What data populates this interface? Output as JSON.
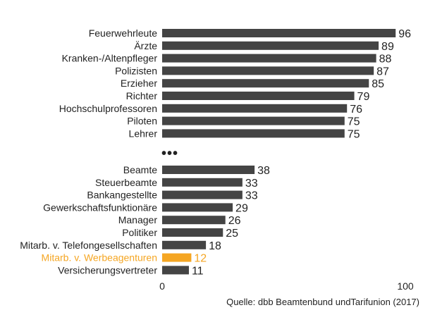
{
  "chart_data": {
    "type": "bar",
    "orientation": "horizontal",
    "groups": [
      {
        "categories": [
          "Feuerwehrleute",
          "Ärzte",
          "Kranken-/Altenpfleger",
          "Polizisten",
          "Erzieher",
          "Richter",
          "Hochschulprofessoren",
          "Piloten",
          "Lehrer"
        ],
        "values": [
          96,
          89,
          88,
          87,
          85,
          79,
          76,
          75,
          75
        ]
      },
      {
        "categories": [
          "Beamte",
          "Steuerbeamte",
          "Bankangestellte",
          "Gewerkschaftsfunktionäre",
          "Manager",
          "Politiker",
          "Mitarb. v. Telefongesellschaften",
          "Mitarb. v. Werbeagenturen",
          "Versicherungsvertreter"
        ],
        "values": [
          38,
          33,
          33,
          29,
          26,
          25,
          18,
          12,
          11
        ]
      }
    ],
    "separator": "•••",
    "highlight": "Mitarb. v. Werbeagenturen",
    "xlim": [
      0,
      100
    ],
    "xticks": [
      "0",
      "100"
    ],
    "title": "",
    "xlabel": "",
    "ylabel": "",
    "grid": false,
    "colors": {
      "bar": "#444444",
      "highlight": "#f5a623",
      "text": "#222222"
    }
  },
  "source": "Quelle: dbb Beamtenbund undTarifunion (2017)"
}
